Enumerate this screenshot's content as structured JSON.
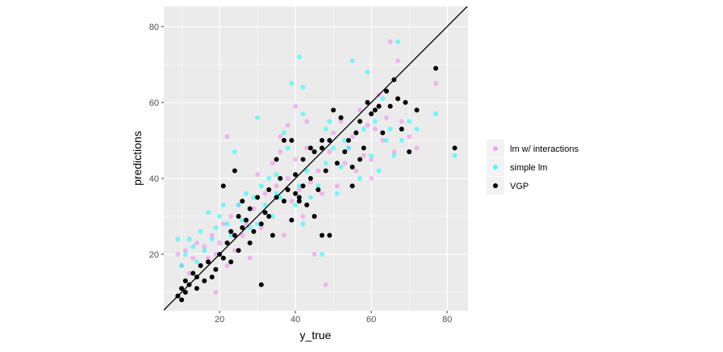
{
  "chart_data": {
    "type": "scatter",
    "title": "",
    "xlabel": "y_true",
    "ylabel": "predictions",
    "xlim": [
      5.3,
      85.5
    ],
    "ylim": [
      5.1,
      85.3
    ],
    "xticks": [
      20,
      40,
      60,
      80
    ],
    "yticks": [
      20,
      40,
      60,
      80
    ],
    "grid": true,
    "reference_line": "y = x",
    "legend_position": "right",
    "series": [
      {
        "name": "lm w/ interactions",
        "color": "#EE82EE",
        "points": [
          [
            9,
            20
          ],
          [
            10,
            17
          ],
          [
            11,
            21
          ],
          [
            12,
            15
          ],
          [
            13,
            19
          ],
          [
            14,
            23
          ],
          [
            15,
            17
          ],
          [
            16,
            22
          ],
          [
            17,
            19
          ],
          [
            18,
            25
          ],
          [
            19,
            10
          ],
          [
            19,
            20
          ],
          [
            20,
            23
          ],
          [
            21,
            28
          ],
          [
            22,
            17
          ],
          [
            22,
            51
          ],
          [
            23,
            30
          ],
          [
            24,
            21
          ],
          [
            25,
            33
          ],
          [
            26,
            25
          ],
          [
            27,
            28
          ],
          [
            28,
            19
          ],
          [
            29,
            32
          ],
          [
            30,
            41
          ],
          [
            31,
            27
          ],
          [
            32,
            36
          ],
          [
            33,
            30
          ],
          [
            34,
            44
          ],
          [
            35,
            38
          ],
          [
            36,
            47
          ],
          [
            37,
            25
          ],
          [
            38,
            40
          ],
          [
            39,
            34
          ],
          [
            40,
            59
          ],
          [
            40,
            45
          ],
          [
            41,
            37
          ],
          [
            42,
            30
          ],
          [
            43,
            48
          ],
          [
            44,
            39
          ],
          [
            45,
            20
          ],
          [
            46,
            42
          ],
          [
            47,
            36
          ],
          [
            48,
            12
          ],
          [
            49,
            47
          ],
          [
            50,
            52
          ],
          [
            51,
            38
          ],
          [
            52,
            55
          ],
          [
            53,
            44
          ],
          [
            54,
            48
          ],
          [
            55,
            51
          ],
          [
            56,
            42
          ],
          [
            57,
            58
          ],
          [
            58,
            46
          ],
          [
            59,
            54
          ],
          [
            60,
            45
          ],
          [
            61,
            53
          ],
          [
            62,
            62
          ],
          [
            63,
            50
          ],
          [
            64,
            56
          ],
          [
            65,
            76
          ],
          [
            66,
            47
          ],
          [
            67,
            71
          ],
          [
            68,
            55
          ],
          [
            70,
            51
          ],
          [
            72,
            48
          ],
          [
            77,
            65
          ],
          [
            43,
            55
          ],
          [
            38,
            54
          ],
          [
            36,
            51
          ],
          [
            60,
            40
          ]
        ]
      },
      {
        "name": "simple lm",
        "color": "#00FFFF",
        "points": [
          [
            9,
            24
          ],
          [
            10,
            17
          ],
          [
            11,
            20
          ],
          [
            12,
            24
          ],
          [
            13,
            22
          ],
          [
            14,
            18
          ],
          [
            15,
            26
          ],
          [
            16,
            21
          ],
          [
            17,
            31
          ],
          [
            18,
            24
          ],
          [
            19,
            27
          ],
          [
            20,
            30
          ],
          [
            21,
            33
          ],
          [
            22,
            28
          ],
          [
            23,
            25
          ],
          [
            24,
            47
          ],
          [
            25,
            33
          ],
          [
            26,
            29
          ],
          [
            27,
            36
          ],
          [
            28,
            27
          ],
          [
            29,
            35
          ],
          [
            30,
            56
          ],
          [
            30,
            28
          ],
          [
            31,
            38
          ],
          [
            32,
            33
          ],
          [
            33,
            40
          ],
          [
            34,
            30
          ],
          [
            35,
            41
          ],
          [
            36,
            35
          ],
          [
            37,
            52
          ],
          [
            38,
            48
          ],
          [
            39,
            65
          ],
          [
            40,
            33
          ],
          [
            41,
            72
          ],
          [
            41,
            38
          ],
          [
            42,
            64
          ],
          [
            42,
            28
          ],
          [
            43,
            42
          ],
          [
            44,
            35
          ],
          [
            45,
            47
          ],
          [
            46,
            38
          ],
          [
            47,
            20
          ],
          [
            48,
            44
          ],
          [
            49,
            55
          ],
          [
            50,
            48
          ],
          [
            51,
            36
          ],
          [
            52,
            43
          ],
          [
            53,
            50
          ],
          [
            54,
            48
          ],
          [
            55,
            71
          ],
          [
            56,
            52
          ],
          [
            57,
            40
          ],
          [
            58,
            53
          ],
          [
            59,
            68
          ],
          [
            60,
            46
          ],
          [
            61,
            55
          ],
          [
            62,
            42
          ],
          [
            63,
            61
          ],
          [
            64,
            50
          ],
          [
            65,
            53
          ],
          [
            66,
            46
          ],
          [
            67,
            76
          ],
          [
            68,
            50
          ],
          [
            70,
            55
          ],
          [
            72,
            53
          ],
          [
            77,
            57
          ],
          [
            82,
            46
          ],
          [
            48,
            53
          ],
          [
            35,
            36
          ],
          [
            42,
            57
          ]
        ]
      },
      {
        "name": "VGP",
        "color": "#000000",
        "points": [
          [
            9,
            9
          ],
          [
            10,
            8
          ],
          [
            10,
            11
          ],
          [
            11,
            10
          ],
          [
            11,
            13
          ],
          [
            12,
            12
          ],
          [
            13,
            15
          ],
          [
            14,
            14
          ],
          [
            14,
            11
          ],
          [
            15,
            17
          ],
          [
            16,
            13
          ],
          [
            17,
            18
          ],
          [
            18,
            14
          ],
          [
            19,
            16
          ],
          [
            20,
            20
          ],
          [
            21,
            19
          ],
          [
            22,
            23
          ],
          [
            23,
            18
          ],
          [
            23,
            26
          ],
          [
            24,
            25
          ],
          [
            25,
            21
          ],
          [
            25,
            30
          ],
          [
            26,
            27
          ],
          [
            27,
            29
          ],
          [
            28,
            23
          ],
          [
            28,
            32
          ],
          [
            29,
            26
          ],
          [
            30,
            35
          ],
          [
            31,
            12
          ],
          [
            31,
            28
          ],
          [
            32,
            31
          ],
          [
            33,
            37
          ],
          [
            33,
            30
          ],
          [
            34,
            25
          ],
          [
            35,
            35
          ],
          [
            36,
            40
          ],
          [
            37,
            50
          ],
          [
            37,
            34
          ],
          [
            38,
            37
          ],
          [
            39,
            29
          ],
          [
            40,
            41
          ],
          [
            40,
            36
          ],
          [
            41,
            34
          ],
          [
            42,
            38
          ],
          [
            42,
            45
          ],
          [
            43,
            33
          ],
          [
            44,
            40
          ],
          [
            45,
            30
          ],
          [
            45,
            47
          ],
          [
            46,
            37
          ],
          [
            47,
            48
          ],
          [
            47,
            25
          ],
          [
            48,
            42
          ],
          [
            49,
            25
          ],
          [
            49,
            50
          ],
          [
            50,
            58
          ],
          [
            51,
            44
          ],
          [
            52,
            56
          ],
          [
            53,
            47
          ],
          [
            54,
            50
          ],
          [
            55,
            43
          ],
          [
            56,
            52
          ],
          [
            57,
            55
          ],
          [
            58,
            48
          ],
          [
            59,
            60
          ],
          [
            60,
            57
          ],
          [
            61,
            58
          ],
          [
            62,
            59
          ],
          [
            63,
            52
          ],
          [
            64,
            63
          ],
          [
            65,
            59
          ],
          [
            66,
            66
          ],
          [
            67,
            61
          ],
          [
            68,
            53
          ],
          [
            69,
            60
          ],
          [
            70,
            47
          ],
          [
            72,
            58
          ],
          [
            77,
            69
          ],
          [
            82,
            48
          ],
          [
            24,
            42
          ],
          [
            26,
            34
          ],
          [
            21,
            38
          ],
          [
            35,
            45
          ],
          [
            39,
            50
          ],
          [
            44,
            48
          ],
          [
            55,
            38
          ],
          [
            41,
            35
          ],
          [
            47,
            50
          ],
          [
            57,
            45
          ]
        ]
      }
    ]
  }
}
